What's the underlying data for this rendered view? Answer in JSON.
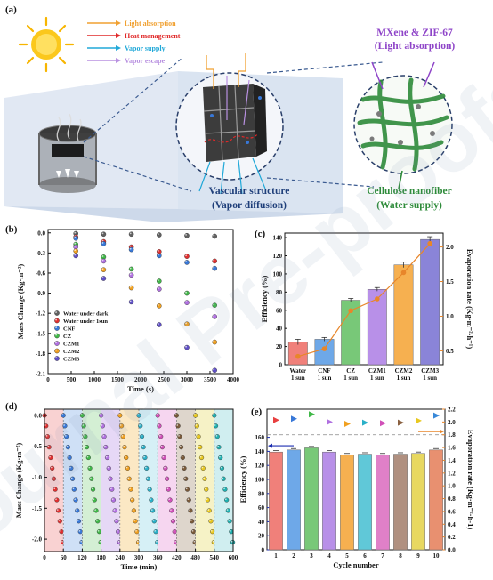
{
  "panel_labels": {
    "a": "(a)",
    "b": "(b)",
    "c": "(c)",
    "d": "(d)",
    "e": "(e)"
  },
  "schematic": {
    "legend": [
      {
        "label": "Light absorption",
        "color": "#f0a030"
      },
      {
        "label": "Heat management",
        "color": "#e02828"
      },
      {
        "label": "Vapor supply",
        "color": "#20a8d8"
      },
      {
        "label": "Vapor escape",
        "color": "#b890e0"
      }
    ],
    "mxene_line1": "MXene & ZIF-67",
    "mxene_line2": "(Light absorption)",
    "vascular_line1": "Vascular structure",
    "vascular_line2": "(Vapor diffusion)",
    "cellulose_line1": "Cellulose nanofiber",
    "cellulose_line2": "(Water supply)",
    "colors": {
      "mxene": "#8e44c8",
      "vascular": "#1f3f7a",
      "cellulose": "#2e8b3a"
    }
  },
  "watermark": "Journal Pre-proofs",
  "chart_data": [
    {
      "id": "b",
      "type": "scatter",
      "xlabel": "Time (s)",
      "ylabel": "Mass Change (Kg·m⁻²)",
      "xlim": [
        0,
        4000
      ],
      "ylim": [
        -2.1,
        0.05
      ],
      "xticks": [
        0,
        500,
        1000,
        1500,
        2000,
        2500,
        3000,
        3500,
        4000
      ],
      "yticks": [
        0.0,
        -0.3,
        -0.6,
        -0.9,
        -1.2,
        -1.5,
        -1.8,
        -2.1
      ],
      "x": [
        600,
        1200,
        1800,
        2400,
        3000,
        3600
      ],
      "series": [
        {
          "name": "Water under dark",
          "color": "#606060",
          "values": [
            -0.01,
            -0.02,
            -0.02,
            -0.03,
            -0.04,
            -0.05
          ]
        },
        {
          "name": "Water under 1sun",
          "color": "#e03030",
          "values": [
            -0.06,
            -0.13,
            -0.21,
            -0.28,
            -0.35,
            -0.42
          ]
        },
        {
          "name": "CNF",
          "color": "#3878d8",
          "values": [
            -0.08,
            -0.16,
            -0.25,
            -0.34,
            -0.44,
            -0.53
          ]
        },
        {
          "name": "CZ",
          "color": "#40b848",
          "values": [
            -0.17,
            -0.36,
            -0.54,
            -0.72,
            -0.9,
            -1.08
          ]
        },
        {
          "name": "CZM1",
          "color": "#b070e0",
          "values": [
            -0.21,
            -0.42,
            -0.63,
            -0.84,
            -1.04,
            -1.25
          ]
        },
        {
          "name": "CZM2",
          "color": "#f0a020",
          "values": [
            -0.27,
            -0.55,
            -0.82,
            -1.09,
            -1.36,
            -1.63
          ]
        },
        {
          "name": "CZM3",
          "color": "#6050c8",
          "values": [
            -0.34,
            -0.68,
            -1.03,
            -1.37,
            -1.71,
            -2.05
          ]
        }
      ]
    },
    {
      "id": "c",
      "type": "bar",
      "categories": [
        "Water\n1 sun",
        "CNF\n1 sun",
        "CZ\n1 sun",
        "CZM1\n1 sun",
        "CZM2\n1 sun",
        "CZM3\n1 sun"
      ],
      "ylabel": "Efficiency (%)",
      "y2label": "Evaporation rate (Kg·m⁻²·h⁻¹)",
      "ylim": [
        0,
        145
      ],
      "yticks": [
        0,
        20,
        40,
        60,
        80,
        100,
        120,
        140
      ],
      "y2lim": [
        0.3,
        2.2
      ],
      "y2ticks": [
        0.5,
        1.0,
        1.5,
        2.0
      ],
      "values": [
        25,
        28,
        71,
        83,
        110,
        138
      ],
      "errors": [
        3,
        2,
        2,
        2,
        3,
        3
      ],
      "bar_colors": [
        "#f0807a",
        "#6ea8e8",
        "#78c878",
        "#b890e8",
        "#f6b050",
        "#8a84d8"
      ],
      "line_series": {
        "name": "Evaporation rate",
        "color": "#e8862a",
        "values": [
          0.42,
          0.53,
          1.08,
          1.25,
          1.63,
          2.05
        ]
      }
    },
    {
      "id": "d",
      "type": "scatter",
      "xlabel": "Time (min)",
      "ylabel": "Mass Change (Kg·m⁻²)",
      "xlim": [
        0,
        600
      ],
      "ylim": [
        -2.2,
        0.1
      ],
      "xticks": [
        0,
        60,
        120,
        180,
        240,
        300,
        360,
        420,
        480,
        540,
        600
      ],
      "yticks": [
        0.0,
        -0.5,
        -1.0,
        -1.5,
        -2.0
      ],
      "cycles": 10,
      "cycle_length": 60,
      "points_per_cycle": 13,
      "end_value": -2.05,
      "band_colors": [
        "#f9d2d2",
        "#cfe0f6",
        "#d4efd4",
        "#e6d8f6",
        "#fbe8c4",
        "#d6f0f6",
        "#f6d6f0",
        "#ded6cc",
        "#f6f2c6",
        "#d0eef0"
      ],
      "dot_colors": [
        "#e03030",
        "#3878d8",
        "#40b848",
        "#b070e0",
        "#f0a020",
        "#2ab0c8",
        "#d050b8",
        "#7a5a3a",
        "#e8c820",
        "#20b0b0"
      ]
    },
    {
      "id": "e",
      "type": "bar",
      "categories": [
        "1",
        "2",
        "3",
        "4",
        "5",
        "6",
        "7",
        "8",
        "9",
        "10"
      ],
      "xlabel": "Cycle number",
      "ylabel": "Efficiency (%)",
      "y2label": "Evaporation rate (Kg·m⁻²·h-1)",
      "ylim": [
        0,
        200
      ],
      "yticks": [
        0,
        20,
        40,
        60,
        80,
        100,
        120,
        140,
        160
      ],
      "y2lim": [
        0,
        2.2
      ],
      "y2ticks": [
        0.0,
        0.2,
        0.4,
        0.6,
        0.8,
        1.0,
        1.2,
        1.4,
        1.6,
        1.8,
        2.0,
        2.2
      ],
      "values": [
        139,
        142,
        145,
        139,
        135,
        136,
        135,
        136,
        137,
        142
      ],
      "bar_colors": [
        "#f0807a",
        "#6ea8e8",
        "#78c878",
        "#b890e8",
        "#f6b050",
        "#60c8d8",
        "#e080c8",
        "#b09080",
        "#e8d860",
        "#e89070"
      ],
      "rate_values": [
        2.03,
        2.05,
        2.12,
        2.0,
        1.97,
        1.99,
        1.98,
        1.99,
        2.02,
        2.1
      ],
      "triangle_colors": [
        "#e84040",
        "#3878d8",
        "#40b848",
        "#b070e0",
        "#f0a020",
        "#2ab0c8",
        "#d050b8",
        "#8a6040",
        "#e8c820",
        "#3888d8"
      ],
      "reference_line": 1.8
    }
  ]
}
